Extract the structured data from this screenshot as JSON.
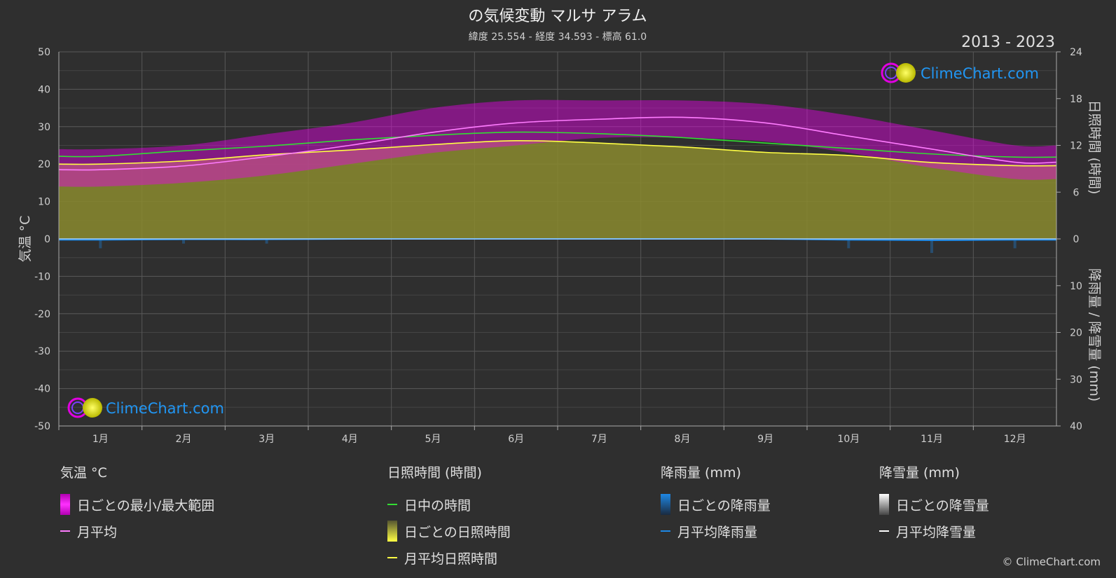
{
  "title": "の気候変動 マルサ アラム",
  "subtitle": "緯度 25.554 - 経度 34.593 - 標高 61.0",
  "period": "2013 - 2023",
  "brand": "ClimeChart.com",
  "copyright": "© ClimeChart.com",
  "legend": {
    "temp": {
      "header": "気温 °C",
      "range": "日ごとの最小/最大範囲",
      "avg": "月平均"
    },
    "sun": {
      "header": "日照時間 (時間)",
      "daylight": "日中の時間",
      "daily": "日ごとの日照時間",
      "avg": "月平均日照時間"
    },
    "rain": {
      "header": "降雨量 (mm)",
      "daily": "日ごとの降雨量",
      "avg": "月平均降雨量"
    },
    "snow": {
      "header": "降雪量 (mm)",
      "daily": "日ごとの降雪量",
      "avg": "月平均降雪量"
    }
  },
  "colors": {
    "background": "#2f2f2f",
    "temp_range": "#e800e8",
    "temp_avg": "#ff7cff",
    "daylight": "#33dd33",
    "sunshine_fill": "#8a8a2e",
    "sunshine_avg": "#ffff44",
    "rain": "#1e88e5",
    "snow": "#ffffff",
    "brand": "#2196f3"
  },
  "chart_data": {
    "type": "area",
    "categories": [
      "1月",
      "2月",
      "3月",
      "4月",
      "5月",
      "6月",
      "7月",
      "8月",
      "9月",
      "10月",
      "11月",
      "12月"
    ],
    "y_left": {
      "label": "気温 °C",
      "range": [
        -50,
        50
      ],
      "ticks": [
        50,
        40,
        30,
        20,
        10,
        0,
        -10,
        -20,
        -30,
        -40,
        -50
      ]
    },
    "y_right_top": {
      "label": "日照時間 (時間)",
      "range": [
        0,
        24
      ],
      "ticks": [
        24,
        18,
        12,
        6,
        0
      ]
    },
    "y_right_bottom": {
      "label": "降雨量 / 降雪量 (mm)",
      "range": [
        0,
        40
      ],
      "ticks": [
        10,
        20,
        30,
        40
      ]
    },
    "grid": true,
    "series": [
      {
        "name": "月平均",
        "axis": "temp",
        "values": [
          18.5,
          19.5,
          22,
          25,
          28.5,
          31,
          32,
          32.5,
          31,
          27.5,
          24,
          20.5
        ]
      },
      {
        "name": "日中の時間",
        "axis": "sun",
        "values": [
          10.6,
          11.3,
          11.9,
          12.7,
          13.3,
          13.7,
          13.5,
          13.0,
          12.3,
          11.6,
          10.9,
          10.5
        ]
      },
      {
        "name": "月平均日照時間",
        "axis": "sun",
        "values": [
          9.6,
          10.0,
          10.8,
          11.4,
          12.1,
          12.6,
          12.3,
          11.8,
          11.1,
          10.7,
          9.8,
          9.4
        ]
      },
      {
        "name": "日ごとの最小/最大範囲",
        "axis": "temp",
        "type": "band",
        "low": [
          14,
          15,
          17,
          20,
          23,
          25,
          27,
          27,
          26,
          23,
          19,
          16
        ],
        "high": [
          24,
          25,
          28,
          31,
          35,
          37,
          37,
          37,
          36,
          33,
          29,
          25
        ]
      },
      {
        "name": "月平均降雨量",
        "axis": "rain",
        "values": [
          0.2,
          0.1,
          0.1,
          0.0,
          0.0,
          0.0,
          0.0,
          0.0,
          0.0,
          0.2,
          0.3,
          0.2
        ]
      },
      {
        "name": "月平均降雪量",
        "axis": "rain",
        "values": [
          0,
          0,
          0,
          0,
          0,
          0,
          0,
          0,
          0,
          0,
          0,
          0
        ]
      }
    ]
  }
}
